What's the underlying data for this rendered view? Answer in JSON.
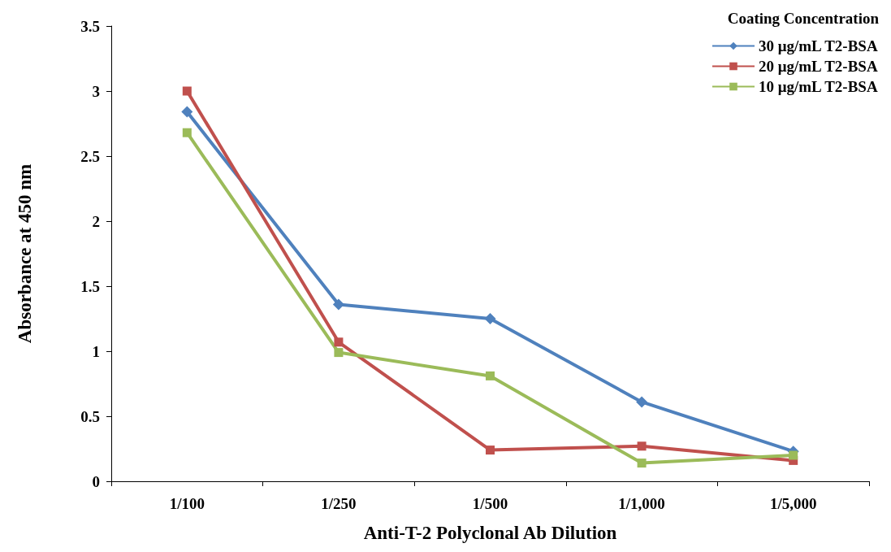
{
  "chart_data": {
    "type": "line",
    "xlabel": "Anti-T-2 Polyclonal Ab Dilution",
    "ylabel": "Absorbance at 450 nm",
    "legend_title": "Coating Concentration",
    "legend": "top right",
    "grid": false,
    "line_style": "solid",
    "categories": [
      "1/100",
      "1/250",
      "1/500",
      "1/1,000",
      "1/5,000"
    ],
    "ylim": [
      0,
      3.5
    ],
    "yticks": [
      0,
      0.5,
      1,
      1.5,
      2,
      2.5,
      3,
      3.5
    ],
    "series": [
      {
        "name": "30 μg/mL T2-BSA",
        "color": "#4f81bd",
        "marker": "diamond",
        "values": [
          2.84,
          1.36,
          1.25,
          0.61,
          0.23
        ]
      },
      {
        "name": "20 μg/mL T2-BSA",
        "color": "#c0504d",
        "marker": "square",
        "values": [
          3.0,
          1.07,
          0.24,
          0.27,
          0.16
        ]
      },
      {
        "name": "10 μg/mL T2-BSA",
        "color": "#9bbb59",
        "marker": "square",
        "values": [
          2.68,
          0.99,
          0.81,
          0.14,
          0.2
        ]
      }
    ]
  }
}
